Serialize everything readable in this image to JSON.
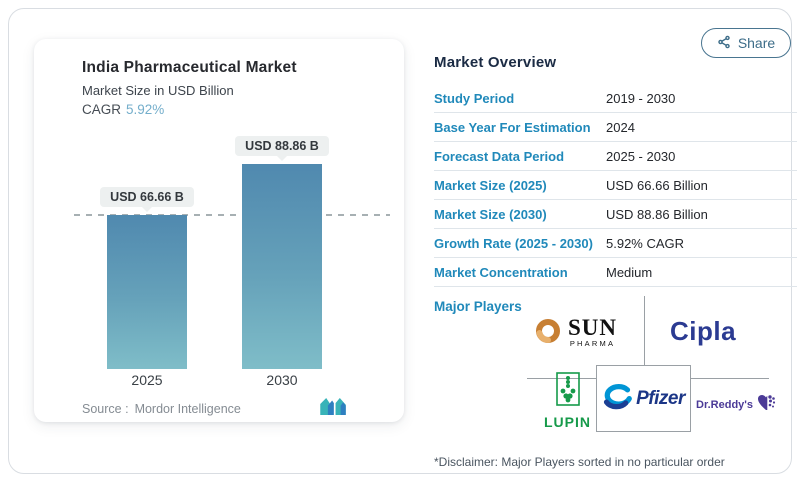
{
  "share": {
    "label": "Share"
  },
  "chart": {
    "title": "India Pharmaceutical Market",
    "subtitle": "Market Size in USD Billion",
    "cagr_label": "CAGR",
    "cagr_value": "5.92%",
    "source_label": "Source :",
    "source_value": "Mordor Intelligence"
  },
  "chart_data": {
    "type": "bar",
    "categories": [
      "2025",
      "2030"
    ],
    "values": [
      66.66,
      88.86
    ],
    "bar_labels": [
      "USD 66.66 B",
      "USD 88.86 B"
    ],
    "title": "India Pharmaceutical Market",
    "ylabel": "Market Size in USD Billion",
    "ylim": [
      0,
      95
    ],
    "grid": false,
    "reference_line": {
      "at_value": 66.66,
      "style": "dashed"
    },
    "bar_color_top": "#5089af",
    "bar_color_bottom": "#7fbdc8"
  },
  "overview": {
    "heading": "Market Overview",
    "rows": [
      {
        "label": "Study Period",
        "value": "2019 - 2030"
      },
      {
        "label": "Base Year For Estimation",
        "value": "2024"
      },
      {
        "label": "Forecast Data Period",
        "value": "2025 - 2030"
      },
      {
        "label": "Market Size (2025)",
        "value": "USD 66.66 Billion"
      },
      {
        "label": "Market Size (2030)",
        "value": "USD 88.86 Billion"
      },
      {
        "label": "Growth Rate (2025 - 2030)",
        "value": "5.92% CAGR"
      },
      {
        "label": "Market Concentration",
        "value": "Medium"
      }
    ],
    "major_players_label": "Major Players",
    "players": [
      "Sun Pharma",
      "Cipla",
      "Lupin",
      "Pfizer",
      "Dr.Reddy's"
    ],
    "disclaimer": "*Disclaimer: Major Players sorted in no particular order"
  },
  "logos": {
    "sun_word": "SUN",
    "sun_sub": "PHARMA",
    "cipla": "Cipla",
    "lupin": "LUPIN",
    "pfizer": "Pfizer",
    "dr_reddys": "Dr.Reddy's"
  },
  "colors": {
    "accent_blue": "#2089ba",
    "heading_navy": "#1b2b44",
    "cagr_accent": "#74aecb",
    "cipla_blue": "#2b3b92",
    "lupin_green": "#169a4a",
    "pfizer_blue": "#1b3687",
    "drl_purple": "#4b3a97",
    "sun_orange": "#c77f33",
    "mi_teal": "#38b3b8",
    "mi_blue": "#2e7fc0"
  }
}
